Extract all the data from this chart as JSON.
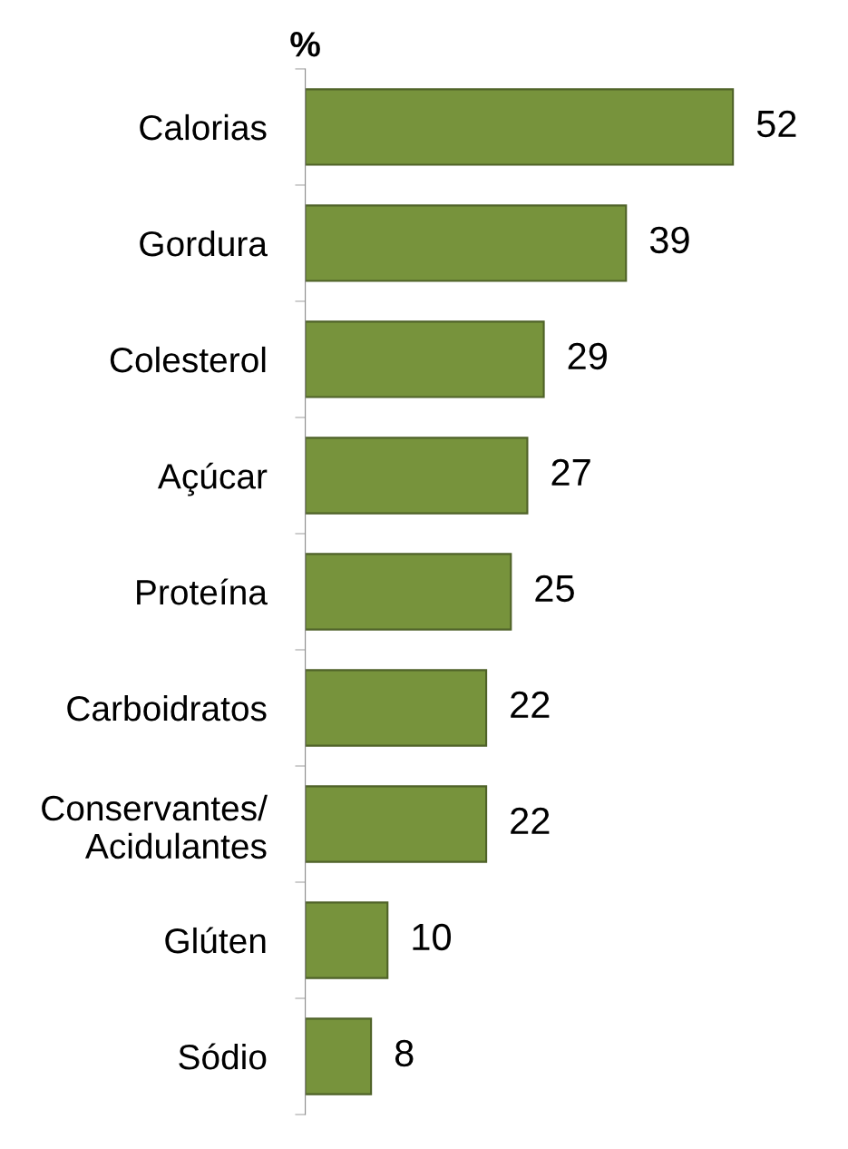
{
  "chart_data": {
    "type": "bar",
    "orientation": "horizontal",
    "ylabel": "%",
    "categories": [
      "Calorias",
      "Gordura",
      "Colesterol",
      "Açúcar",
      "Proteína",
      "Carboidratos",
      "Conservantes/\nAcidulantes",
      "Glúten",
      "Sódio"
    ],
    "values": [
      52,
      39,
      29,
      27,
      25,
      22,
      22,
      10,
      8
    ],
    "color": "#77933c",
    "data_labels": true,
    "grid": false,
    "legend": false
  }
}
